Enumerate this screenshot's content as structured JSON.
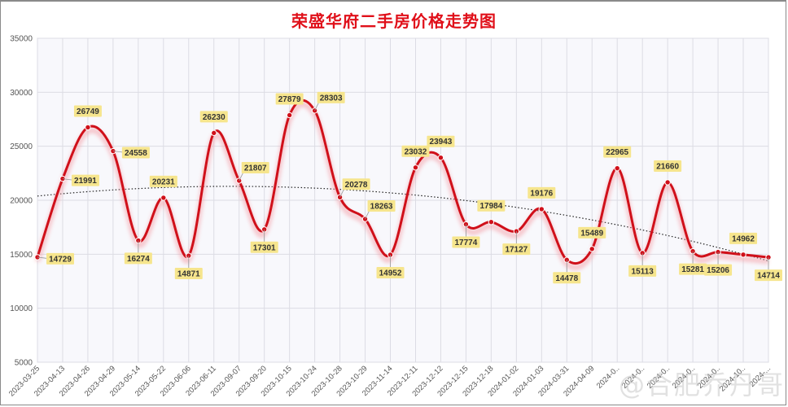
{
  "title": "荣盛华府二手房价格走势图",
  "watermark": "@合肥乔丹哥",
  "colors": {
    "title": "#e0101a",
    "line": "#d0101a",
    "label_bg": "#f6e58d",
    "trend": "#222222",
    "grid": "#dcdce4",
    "plot_bg": "#f8f8fc"
  },
  "chart_data": {
    "type": "line",
    "title": "荣盛华府二手房价格走势图",
    "xlabel": "",
    "ylabel": "",
    "ylim": [
      5000,
      35000
    ],
    "yticks": [
      5000,
      10000,
      15000,
      20000,
      25000,
      30000,
      35000
    ],
    "grid": true,
    "legend": "none",
    "x": [
      "2023-03-25",
      "2023-04-13",
      "2023-04-26",
      "2023-04-29",
      "2023-05-14",
      "2023-05-22",
      "2023-06-06",
      "2023-06-11",
      "2023-09-07",
      "2023-09-20",
      "2023-10-15",
      "2023-10-24",
      "2023-10-28",
      "2023-10-29",
      "2023-11-14",
      "2023-12-11",
      "2023-12-12",
      "2023-12-15",
      "2023-12-18",
      "2024-01-02",
      "2024-01-03",
      "2024-03-31",
      "2024-04-09",
      "2024-0..",
      "2024-0..",
      "2024-0..",
      "2024-0..",
      "2024-0..",
      "2024-10..",
      "2024-..."
    ],
    "series": [
      {
        "name": "二手房价格",
        "values": [
          14729,
          21991,
          26749,
          24558,
          16274,
          20231,
          14871,
          26230,
          21807,
          17301,
          27879,
          28303,
          20278,
          18263,
          14952,
          23032,
          23943,
          17774,
          17984,
          17127,
          19176,
          14478,
          15489,
          22965,
          15113,
          21660,
          15281,
          15206,
          14962,
          14714
        ]
      },
      {
        "name": "趋势线",
        "style": "dotted",
        "type": "polynomial-trend"
      }
    ],
    "label_positions": [
      "right",
      "right",
      "above",
      "right",
      "below",
      "above",
      "below",
      "above",
      "above-right",
      "below",
      "above",
      "above-right",
      "above-right",
      "above-right",
      "below",
      "above",
      "above",
      "below",
      "above",
      "below",
      "above",
      "below",
      "above",
      "above",
      "below",
      "above",
      "below",
      "below",
      "above",
      "below"
    ]
  }
}
